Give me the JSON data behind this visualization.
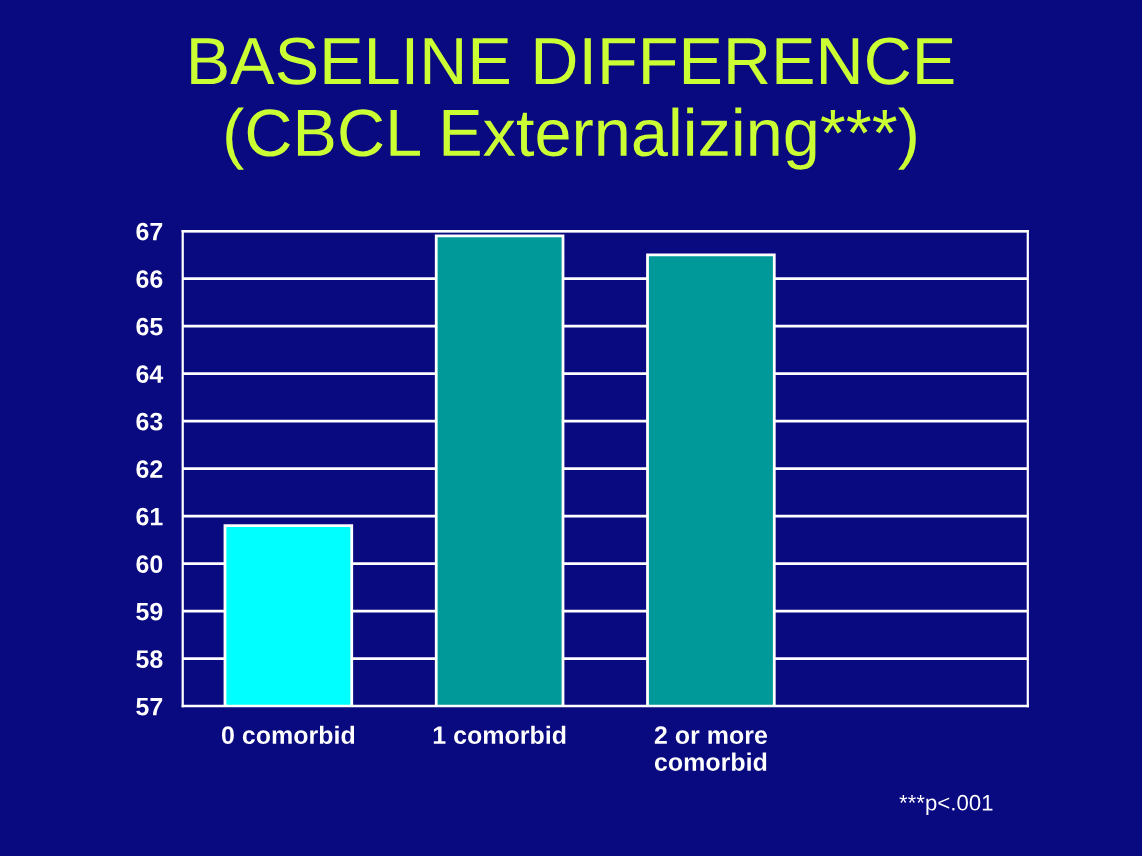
{
  "chart_data": {
    "type": "bar",
    "title": "BASELINE DIFFERENCE\n(CBCL Externalizing***)",
    "categories": [
      "0 comorbid",
      "1 comorbid",
      "2 or more\ncomorbid",
      null
    ],
    "values": [
      60.8,
      66.9,
      66.5,
      null
    ],
    "colors": [
      "#00ffff",
      "#009999",
      "#009999",
      "#009999"
    ],
    "ylim": [
      57,
      67
    ],
    "yticks": [
      57,
      58,
      59,
      60,
      61,
      62,
      63,
      64,
      65,
      66,
      67
    ],
    "grid": "y",
    "annotations": [
      "***p<.001"
    ]
  }
}
